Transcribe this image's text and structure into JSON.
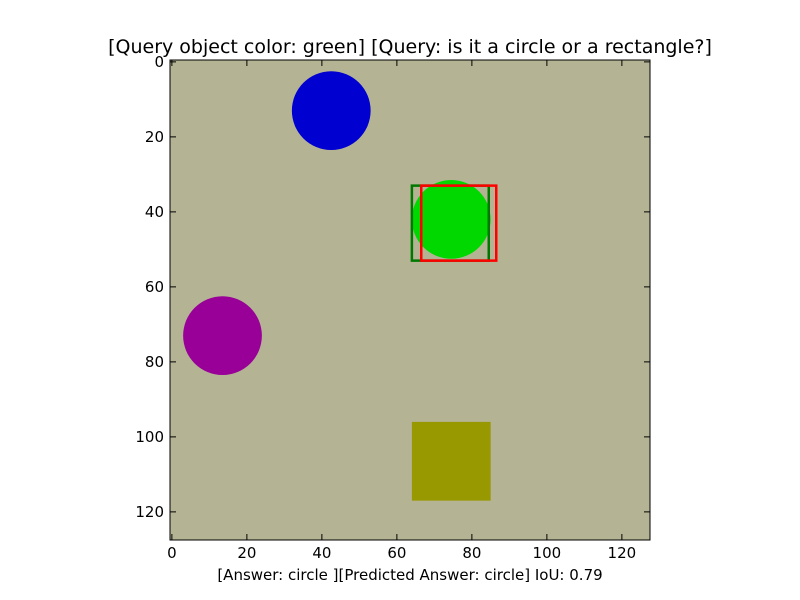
{
  "figure": {
    "title": "[Query object color: green] [Query: is it a circle or a rectangle?]",
    "caption": "[Answer: circle ][Predicted Answer: circle] IoU: 0.79"
  },
  "chart_data": {
    "type": "image",
    "x_ticks": [
      0,
      20,
      40,
      60,
      80,
      100,
      120
    ],
    "y_ticks": [
      0,
      20,
      40,
      60,
      80,
      100,
      120
    ],
    "xlim": [
      -0.5,
      127.5
    ],
    "ylim": [
      127.5,
      -0.5
    ],
    "background_color": "#b4b494",
    "objects": [
      {
        "shape": "circle",
        "color": "#0000d0",
        "cx": 42.5,
        "cy": 13,
        "r": 10.5
      },
      {
        "shape": "circle",
        "color": "#00d800",
        "cx": 74.5,
        "cy": 42,
        "r": 10.5
      },
      {
        "shape": "circle",
        "color": "#980098",
        "cx": 13.5,
        "cy": 73,
        "r": 10.5
      },
      {
        "shape": "rectangle",
        "color": "#989800",
        "x0": 64,
        "y0": 96,
        "x1": 85,
        "y1": 117
      }
    ],
    "boxes": [
      {
        "label": "ground truth",
        "color": "#007700",
        "x0": 64,
        "y0": 33,
        "x1": 84.5,
        "y1": 53
      },
      {
        "label": "prediction",
        "color": "#ff0000",
        "x0": 66.5,
        "y0": 33,
        "x1": 86.5,
        "y1": 53
      }
    ],
    "iou": 0.79
  }
}
